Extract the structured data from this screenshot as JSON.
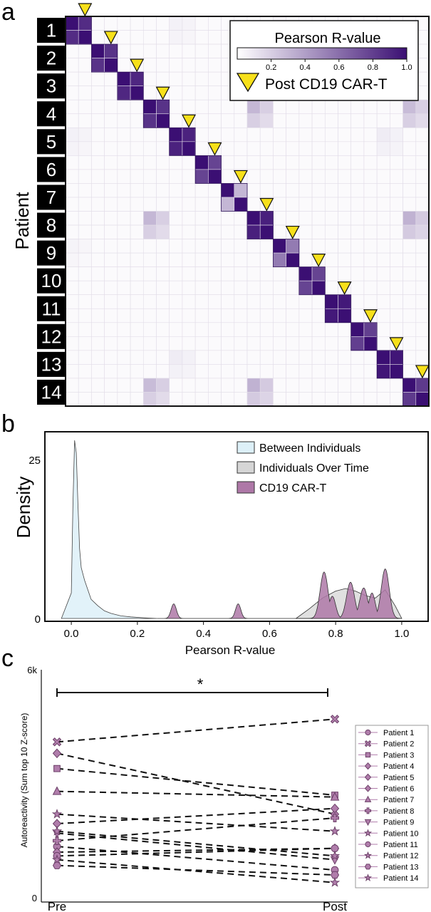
{
  "panels": {
    "a": {
      "letter": "a"
    },
    "b": {
      "letter": "b"
    },
    "c": {
      "letter": "c"
    }
  },
  "chart_data": [
    {
      "panel": "a",
      "type": "heatmap",
      "ylabel": "Patient",
      "row_labels": [
        "1",
        "2",
        "3",
        "4",
        "5",
        "6",
        "7",
        "8",
        "9",
        "10",
        "11",
        "12",
        "13",
        "14"
      ],
      "samples_per_patient": 2,
      "colorbar": {
        "title": "Pearson R-value",
        "ticks": [
          "0.2",
          "0.4",
          "0.6",
          "0.8",
          "1.0"
        ],
        "range": [
          0,
          1.0
        ],
        "color_low": "#ffffff",
        "color_high": "#3b0f73"
      },
      "marker_legend": "Post CD19 CAR-T",
      "marker_color": "#f7e01a",
      "diagonal_block_r": [
        [
          1.0,
          0.88,
          0.88,
          1.0
        ],
        [
          1.0,
          0.85,
          0.85,
          1.0
        ],
        [
          1.0,
          0.9,
          0.9,
          1.0
        ],
        [
          1.0,
          0.85,
          0.85,
          1.0
        ],
        [
          1.0,
          0.92,
          0.92,
          1.0
        ],
        [
          1.0,
          0.78,
          0.78,
          1.0
        ],
        [
          1.0,
          0.3,
          0.3,
          1.0
        ],
        [
          1.0,
          0.93,
          0.93,
          1.0
        ],
        [
          1.0,
          0.55,
          0.55,
          1.0
        ],
        [
          1.0,
          0.78,
          0.78,
          1.0
        ],
        [
          1.0,
          0.96,
          0.96,
          1.0
        ],
        [
          1.0,
          0.8,
          0.8,
          1.0
        ],
        [
          1.0,
          0.97,
          0.97,
          1.0
        ],
        [
          1.0,
          0.82,
          0.82,
          1.0
        ]
      ],
      "off_diagonal_block_r": [
        {
          "patients": [
            4,
            8
          ],
          "r": [
            0.3,
            0.2,
            0.2,
            0.15
          ]
        },
        {
          "patients": [
            4,
            14
          ],
          "r": [
            0.28,
            0.2,
            0.2,
            0.15
          ]
        },
        {
          "patients": [
            8,
            14
          ],
          "r": [
            0.32,
            0.22,
            0.22,
            0.18
          ]
        },
        {
          "patients": [
            5,
            13
          ],
          "r": [
            0.08,
            0.06,
            0.06,
            0.05
          ]
        },
        {
          "patients": [
            1,
            9
          ],
          "r": [
            0.05,
            0.04,
            0.04,
            0.03
          ]
        },
        {
          "patients": [
            1,
            5
          ],
          "r": [
            0.06,
            0.05,
            0.05,
            0.04
          ]
        }
      ],
      "background_r": 0.02
    },
    {
      "panel": "b",
      "type": "area",
      "xlabel": "Pearson R-value",
      "ylabel": "Density",
      "xlim": [
        -0.08,
        1.08
      ],
      "ylim": [
        0,
        28
      ],
      "xticks": [
        "0.0",
        "0.2",
        "0.4",
        "0.6",
        "0.8",
        "1.0"
      ],
      "xtick_values": [
        0,
        0.2,
        0.4,
        0.6,
        0.8,
        1.0
      ],
      "yticks": [
        "0",
        "25"
      ],
      "ytick_values": [
        0,
        25
      ],
      "legend_position": "top-right",
      "series": [
        {
          "name": "Between Individuals",
          "color": "#ddf0f8",
          "x": [
            -0.03,
            0,
            0.005,
            0.01,
            0.015,
            0.02,
            0.025,
            0.03,
            0.04,
            0.05,
            0.06,
            0.08,
            0.1,
            0.12,
            0.15,
            0.18,
            0.22,
            0.26
          ],
          "y": [
            0,
            4,
            18,
            28,
            26,
            18,
            11,
            8,
            6,
            4.5,
            3,
            2,
            1.2,
            0.8,
            0.4,
            0.25,
            0.1,
            0
          ]
        },
        {
          "name": "Individuals Over Time",
          "color": "#d6d6d6",
          "x": [
            0.68,
            0.72,
            0.76,
            0.8,
            0.83,
            0.86,
            0.89,
            0.92,
            0.95,
            0.98,
            1.0
          ],
          "y": [
            0,
            1.5,
            3.2,
            4.3,
            4.7,
            4.3,
            3.6,
            3.2,
            4.5,
            2,
            0
          ]
        },
        {
          "name": "CD19 CAR-T",
          "color": "#ae78a7",
          "peaks": [
            {
              "mu": 0.31,
              "sigma": 0.008,
              "height": 2.3
            },
            {
              "mu": 0.505,
              "sigma": 0.008,
              "height": 2.3
            },
            {
              "mu": 0.765,
              "sigma": 0.012,
              "height": 7.3
            },
            {
              "mu": 0.79,
              "sigma": 0.01,
              "height": 3.5
            },
            {
              "mu": 0.845,
              "sigma": 0.012,
              "height": 5.7
            },
            {
              "mu": 0.885,
              "sigma": 0.012,
              "height": 4.8
            },
            {
              "mu": 0.91,
              "sigma": 0.01,
              "height": 4.0
            },
            {
              "mu": 0.95,
              "sigma": 0.012,
              "height": 7.8
            }
          ]
        }
      ]
    },
    {
      "panel": "c",
      "type": "line",
      "ylabel": "Autoreactivity (Sum top 10 Z-score)",
      "categories": [
        "Pre",
        "Post"
      ],
      "ylim": [
        0,
        6000
      ],
      "yticks": [
        "0",
        "6k"
      ],
      "ytick_values": [
        0,
        6000
      ],
      "significance": "*",
      "series": [
        {
          "name": "Patient   1",
          "marker": "circle",
          "values": [
            1350,
            730
          ]
        },
        {
          "name": "Patient   2",
          "marker": "x",
          "values": [
            4100,
            4700
          ]
        },
        {
          "name": "Patient   3",
          "marker": "square",
          "values": [
            3400,
            2700
          ]
        },
        {
          "name": "Patient   4",
          "marker": "diamond",
          "values": [
            3800,
            2200
          ]
        },
        {
          "name": "Patient   5",
          "marker": "diamond",
          "values": [
            1200,
            1300
          ]
        },
        {
          "name": "Patient   6",
          "marker": "diamond",
          "values": [
            1950,
            2350
          ]
        },
        {
          "name": "Patient   7",
          "marker": "triangle-up",
          "values": [
            2800,
            2650
          ]
        },
        {
          "name": "Patient   8",
          "marker": "plus",
          "values": [
            1500,
            2100
          ]
        },
        {
          "name": "Patient   9",
          "marker": "triangle-down",
          "values": [
            1700,
            1000
          ]
        },
        {
          "name": "Patient 10",
          "marker": "star",
          "values": [
            2200,
            1750
          ]
        },
        {
          "name": "Patient 11",
          "marker": "circle",
          "values": [
            1100,
            1300
          ]
        },
        {
          "name": "Patient 12",
          "marker": "star",
          "values": [
            1750,
            1100
          ]
        },
        {
          "name": "Patient 13",
          "marker": "hexagon",
          "values": [
            850,
            600
          ]
        },
        {
          "name": "Patient 14",
          "marker": "star",
          "values": [
            1000,
            400
          ]
        }
      ]
    }
  ]
}
